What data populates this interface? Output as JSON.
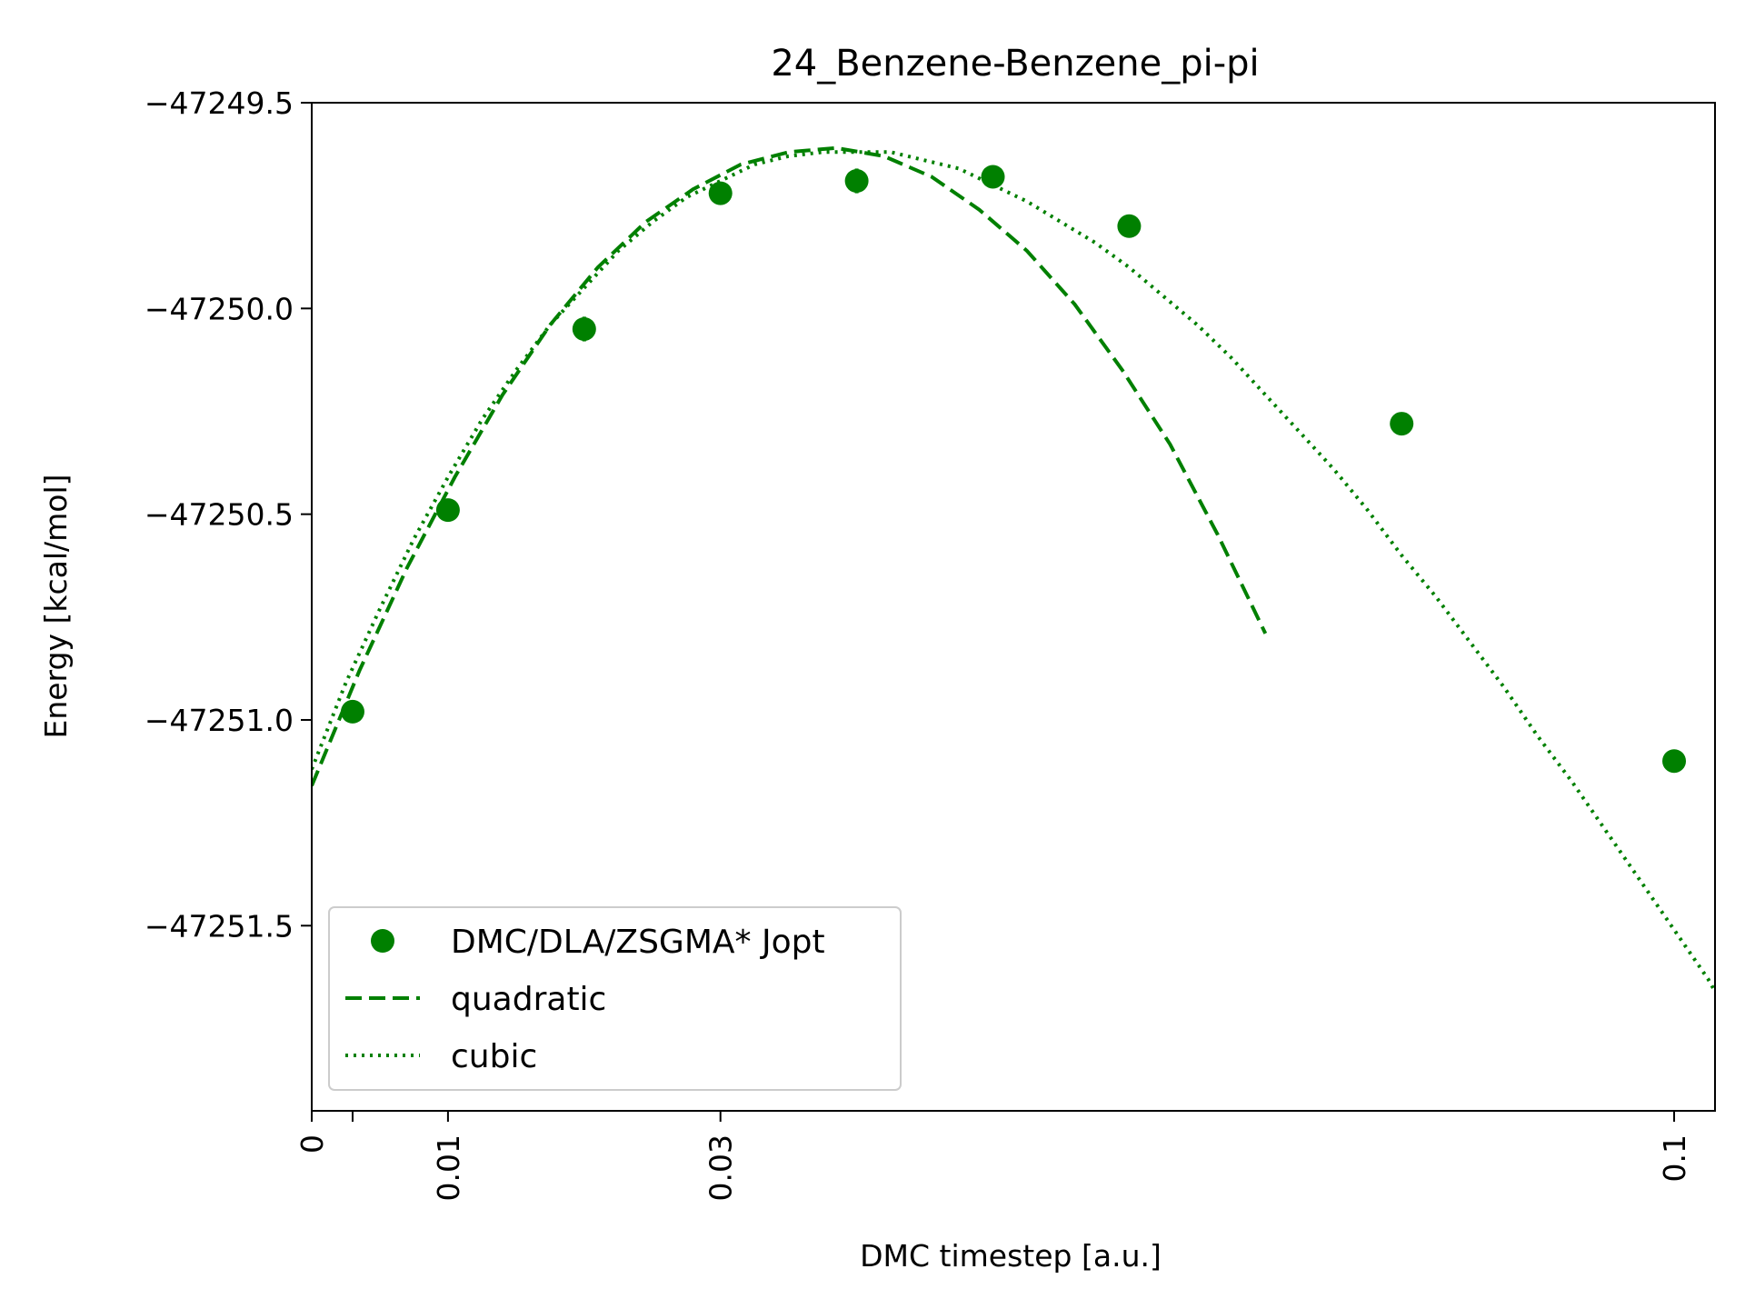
{
  "chart_data": {
    "type": "scatter",
    "title": "24_Benzene-Benzene_pi-pi",
    "xlabel": "DMC timestep [a.u.]",
    "ylabel": "Energy [kcal/mol]",
    "xlim": [
      0,
      0.103
    ],
    "ylim": [
      -47251.95,
      -47249.5
    ],
    "xticks": [
      {
        "value": 0,
        "label": "0"
      },
      {
        "value": 0.003,
        "label": ""
      },
      {
        "value": 0.01,
        "label": "0.01"
      },
      {
        "value": 0.03,
        "label": "0.03"
      },
      {
        "value": 0.1,
        "label": "0.1"
      }
    ],
    "yticks": [
      {
        "value": -47249.5,
        "label": "−47249.5"
      },
      {
        "value": -47250.0,
        "label": "−47250.0"
      },
      {
        "value": -47250.5,
        "label": "−47250.5"
      },
      {
        "value": -47251.0,
        "label": "−47251.0"
      },
      {
        "value": -47251.5,
        "label": "−47251.5"
      }
    ],
    "grid": false,
    "legend_position": "lower-left",
    "color": "#008000",
    "series": [
      {
        "name": "DMC/DLA/ZSGMA* Jopt",
        "style": "markers-with-errorbars",
        "x": [
          0.003,
          0.01,
          0.02,
          0.03,
          0.04,
          0.05,
          0.06,
          0.08,
          0.1
        ],
        "y": [
          -47250.98,
          -47250.49,
          -47250.05,
          -47249.72,
          -47249.69,
          -47249.68,
          -47249.8,
          -47250.28,
          -47251.1
        ],
        "yerr": [
          0.025,
          0.025,
          0.03,
          0.02,
          0.03,
          0.02,
          0.02,
          0.025,
          0.025
        ]
      },
      {
        "name": "quadratic",
        "style": "dashed",
        "x": [
          0,
          0.0035,
          0.007,
          0.0105,
          0.014,
          0.0175,
          0.021,
          0.0245,
          0.028,
          0.0315,
          0.035,
          0.0385,
          0.042,
          0.0455,
          0.049,
          0.0525,
          0.056,
          0.0595,
          0.063,
          0.0665,
          0.07
        ],
        "y": [
          -47251.16,
          -47250.88,
          -47250.63,
          -47250.41,
          -47250.21,
          -47250.04,
          -47249.9,
          -47249.79,
          -47249.71,
          -47249.65,
          -47249.62,
          -47249.61,
          -47249.63,
          -47249.68,
          -47249.76,
          -47249.86,
          -47249.99,
          -47250.15,
          -47250.33,
          -47250.55,
          -47250.79
        ]
      },
      {
        "name": "cubic",
        "style": "dotted",
        "x": [
          0,
          0.0025,
          0.005,
          0.0075,
          0.01,
          0.0125,
          0.015,
          0.0175,
          0.02,
          0.0225,
          0.025,
          0.0275,
          0.03,
          0.0325,
          0.035,
          0.0375,
          0.04,
          0.0425,
          0.045,
          0.0475,
          0.05,
          0.0525,
          0.055,
          0.0575,
          0.06,
          0.0625,
          0.065,
          0.0675,
          0.07,
          0.0725,
          0.075,
          0.0775,
          0.08,
          0.0825,
          0.085,
          0.0875,
          0.09,
          0.0925,
          0.095,
          0.0975,
          0.1,
          0.1025,
          0.103
        ],
        "y": [
          -47251.12,
          -47250.91,
          -47250.73,
          -47250.56,
          -47250.41,
          -47250.27,
          -47250.15,
          -47250.04,
          -47249.95,
          -47249.86,
          -47249.79,
          -47249.73,
          -47249.69,
          -47249.65,
          -47249.63,
          -47249.62,
          -47249.62,
          -47249.62,
          -47249.64,
          -47249.66,
          -47249.7,
          -47249.74,
          -47249.79,
          -47249.84,
          -47249.9,
          -47249.97,
          -47250.04,
          -47250.12,
          -47250.21,
          -47250.3,
          -47250.39,
          -47250.49,
          -47250.6,
          -47250.7,
          -47250.81,
          -47250.92,
          -47251.04,
          -47251.15,
          -47251.27,
          -47251.39,
          -47251.51,
          -47251.63,
          -47251.66
        ]
      }
    ]
  }
}
